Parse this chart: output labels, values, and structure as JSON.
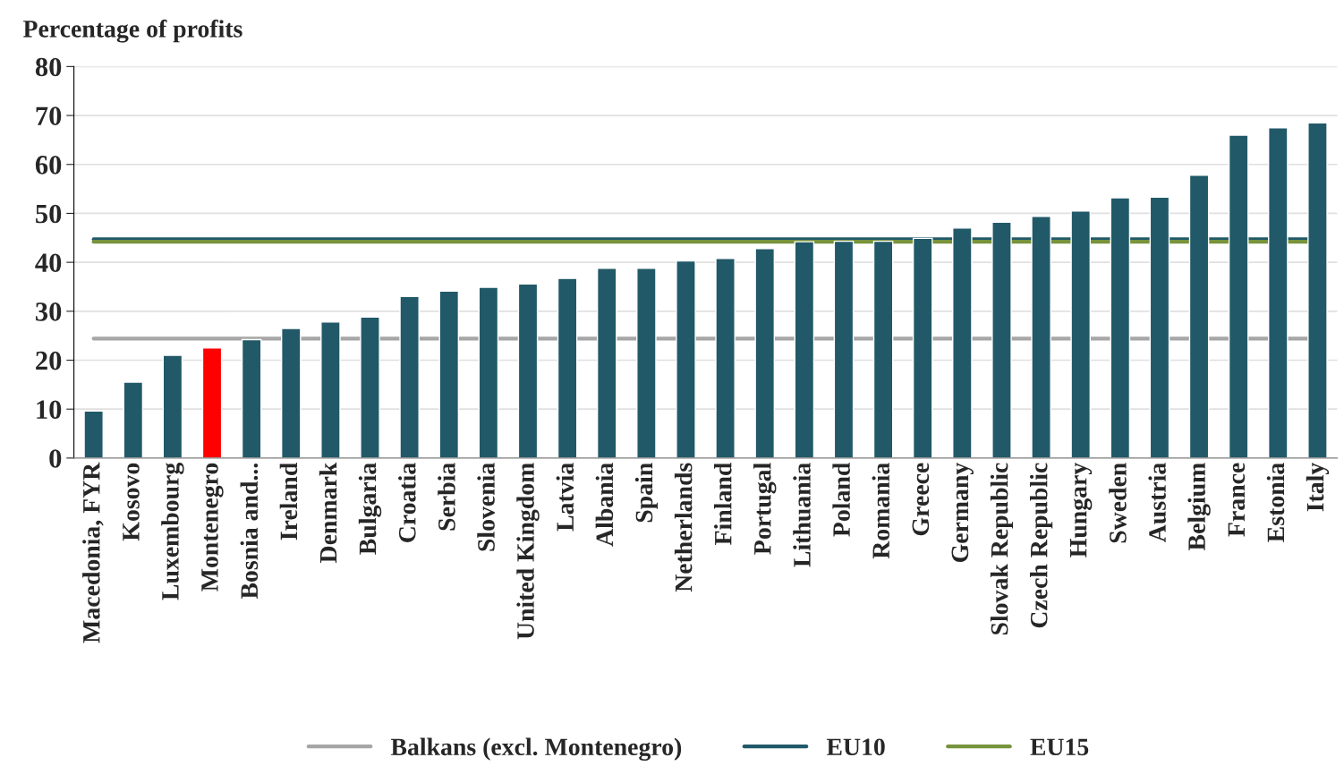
{
  "chart_data": {
    "type": "bar",
    "ylabel": "Percentage of profits",
    "categories": [
      "Macedonia, FYR",
      "Kosovo",
      "Luxembourg",
      "Montenegro",
      "Bosnia and...",
      "Ireland",
      "Denmark",
      "Bulgaria",
      "Croatia",
      "Serbia",
      "Slovenia",
      "United Kingdom",
      "Latvia",
      "Albania",
      "Spain",
      "Netherlands",
      "Finland",
      "Portugal",
      "Lithuania",
      "Poland",
      "Romania",
      "Greece",
      "Germany",
      "Slovak Republic",
      "Czech Republic",
      "Hungary",
      "Sweden",
      "Austria",
      "Belgium",
      "France",
      "Estonia",
      "Italy"
    ],
    "values": [
      9.6,
      15.5,
      21,
      22.5,
      24.2,
      26.5,
      27.8,
      28.8,
      33,
      34.1,
      34.9,
      35.6,
      36.7,
      38.8,
      38.8,
      40.3,
      40.8,
      42.8,
      44.2,
      44.3,
      44.3,
      44.9,
      47,
      48.2,
      49.4,
      50.5,
      53.2,
      53.3,
      57.8,
      66,
      67.5,
      68.5
    ],
    "colors": [
      "#215968",
      "#215968",
      "#215968",
      "#ff0000",
      "#215968",
      "#215968",
      "#215968",
      "#215968",
      "#215968",
      "#215968",
      "#215968",
      "#215968",
      "#215968",
      "#215968",
      "#215968",
      "#215968",
      "#215968",
      "#215968",
      "#215968",
      "#215968",
      "#215968",
      "#215968",
      "#215968",
      "#215968",
      "#215968",
      "#215968",
      "#215968",
      "#215968",
      "#215968",
      "#215968",
      "#215968",
      "#215968"
    ],
    "ref_lines": [
      {
        "axis": "y",
        "value": 24.4,
        "label": "Balkans (excl. Montenegro)",
        "color": "#a6a6a6"
      },
      {
        "axis": "y",
        "value": 44.7,
        "label": "EU10",
        "color": "#215968"
      },
      {
        "axis": "y",
        "value": 44.2,
        "label": "EU15",
        "color": "#77933c"
      }
    ],
    "ylim": [
      0,
      80
    ],
    "yticks": [
      0,
      10,
      20,
      30,
      40,
      50,
      60,
      70,
      80
    ],
    "grid": "y",
    "legend": "bottom"
  }
}
